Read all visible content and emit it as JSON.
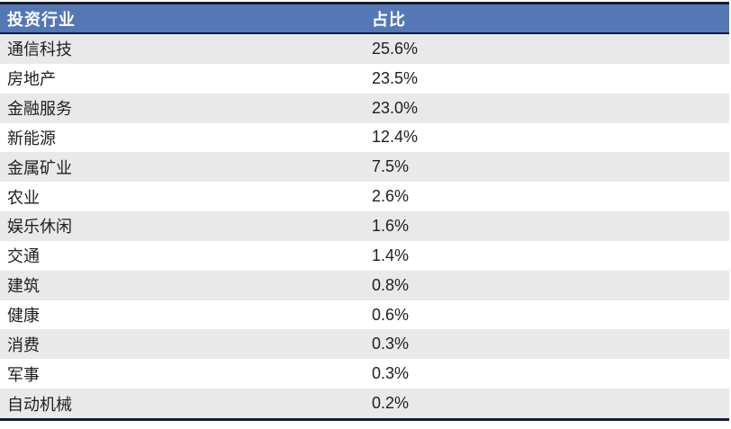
{
  "table": {
    "columns": [
      {
        "key": "industry",
        "label": "投资行业"
      },
      {
        "key": "share",
        "label": "占比"
      }
    ],
    "rows": [
      {
        "industry": "通信科技",
        "share": "25.6%"
      },
      {
        "industry": "房地产",
        "share": "23.5%"
      },
      {
        "industry": "金融服务",
        "share": "23.0%"
      },
      {
        "industry": "新能源",
        "share": "12.4%"
      },
      {
        "industry": "金属矿业",
        "share": "7.5%"
      },
      {
        "industry": "农业",
        "share": "2.6%"
      },
      {
        "industry": "娱乐休闲",
        "share": "1.6%"
      },
      {
        "industry": "交通",
        "share": "1.4%"
      },
      {
        "industry": "建筑",
        "share": "0.8%"
      },
      {
        "industry": "健康",
        "share": "0.6%"
      },
      {
        "industry": "消费",
        "share": "0.3%"
      },
      {
        "industry": "军事",
        "share": "0.3%"
      },
      {
        "industry": "自动机械",
        "share": "0.2%"
      }
    ]
  },
  "colors": {
    "header_bg": "#5478b5",
    "header_text": "#ffffff",
    "border_dark": "#141b33",
    "row_alt_bg": "#e9e9e9",
    "row_bg": "#ffffff",
    "cell_text": "#1f1f1f"
  },
  "chart_data": {
    "type": "table",
    "title": "",
    "columns": [
      "投资行业",
      "占比"
    ],
    "categories": [
      "通信科技",
      "房地产",
      "金融服务",
      "新能源",
      "金属矿业",
      "农业",
      "娱乐休闲",
      "交通",
      "建筑",
      "健康",
      "消费",
      "军事",
      "自动机械"
    ],
    "values_percent": [
      25.6,
      23.5,
      23.0,
      12.4,
      7.5,
      2.6,
      1.6,
      1.4,
      0.8,
      0.6,
      0.3,
      0.3,
      0.2
    ],
    "layout": {
      "header_style": "blue-band-white-bold-text",
      "row_striping": "odd-rows-gray",
      "borders": "dark-navy-rules-top-header-bottom"
    }
  }
}
